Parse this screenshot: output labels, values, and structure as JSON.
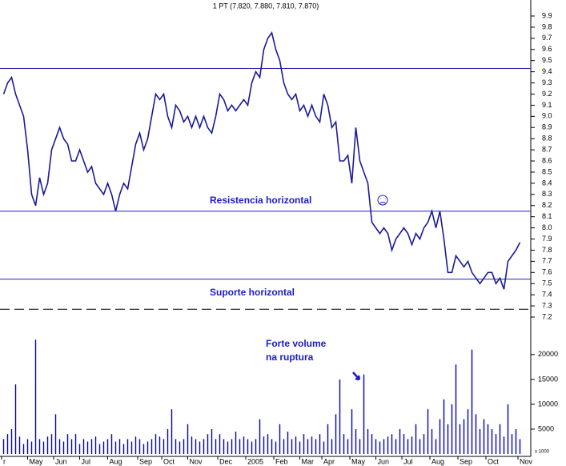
{
  "chart_data": {
    "type": "stock",
    "title": "1 PT (7.820, 7.880, 7.810, 7.870)",
    "price": {
      "color": "#1a1a9a",
      "values": [
        9.2,
        9.3,
        9.35,
        9.2,
        9.1,
        9.0,
        8.7,
        8.3,
        8.2,
        8.45,
        8.3,
        8.4,
        8.7,
        8.8,
        8.9,
        8.8,
        8.75,
        8.6,
        8.6,
        8.7,
        8.6,
        8.5,
        8.55,
        8.4,
        8.35,
        8.3,
        8.4,
        8.3,
        8.15,
        8.3,
        8.4,
        8.35,
        8.55,
        8.75,
        8.85,
        8.7,
        8.8,
        9.0,
        9.2,
        9.15,
        9.2,
        9.0,
        8.9,
        9.1,
        9.05,
        8.95,
        9.0,
        8.9,
        9.0,
        8.9,
        9.0,
        8.9,
        8.85,
        9.0,
        9.2,
        9.15,
        9.05,
        9.1,
        9.05,
        9.1,
        9.15,
        9.1,
        9.3,
        9.4,
        9.35,
        9.6,
        9.7,
        9.75,
        9.6,
        9.5,
        9.3,
        9.2,
        9.15,
        9.2,
        9.05,
        9.1,
        9.0,
        9.1,
        9.0,
        8.95,
        9.2,
        9.1,
        8.9,
        8.95,
        8.6,
        8.6,
        8.65,
        8.4,
        8.9,
        8.6,
        8.5,
        8.4,
        8.05,
        8.0,
        7.95,
        8.0,
        7.95,
        7.8,
        7.9,
        7.95,
        8.0,
        7.95,
        7.85,
        7.95,
        7.9,
        8.0,
        8.05,
        8.15,
        8.0,
        8.15,
        7.9,
        7.6,
        7.6,
        7.75,
        7.7,
        7.65,
        7.7,
        7.6,
        7.55,
        7.5,
        7.55,
        7.6,
        7.6,
        7.5,
        7.55,
        7.45,
        7.7,
        7.75,
        7.8,
        7.87
      ]
    },
    "volume": {
      "color": "#0000c8",
      "values": [
        3000,
        4000,
        5000,
        14000,
        3500,
        2000,
        3000,
        2500,
        23000,
        3000,
        2500,
        3500,
        4000,
        8000,
        3000,
        2500,
        4000,
        3000,
        4000,
        2000,
        3000,
        2500,
        3000,
        3500,
        2000,
        2500,
        3000,
        4000,
        2500,
        3000,
        2000,
        3000,
        2500,
        3500,
        3000,
        2000,
        2500,
        3000,
        4000,
        3500,
        3000,
        5000,
        9000,
        3000,
        2500,
        3000,
        6000,
        3500,
        3000,
        2500,
        3000,
        4000,
        5000,
        3000,
        4000,
        3000,
        2500,
        3000,
        4500,
        3000,
        3500,
        3000,
        2500,
        3000,
        7000,
        3500,
        4000,
        3000,
        2500,
        6000,
        3000,
        4500,
        3000,
        3500,
        2500,
        4000,
        3000,
        3500,
        3000,
        4000,
        2500,
        6000,
        3000,
        8000,
        15000,
        4000,
        3000,
        9000,
        5000,
        3000,
        16000,
        5000,
        4000,
        3000,
        2500,
        3000,
        3500,
        4000,
        3000,
        5000,
        4000,
        3000,
        3500,
        6000,
        3000,
        4000,
        9000,
        5000,
        3000,
        7000,
        11000,
        6000,
        10000,
        18000,
        6000,
        7000,
        9000,
        21000,
        8000,
        5000,
        7000,
        6000,
        5000,
        4000,
        6000,
        3500,
        10000,
        4000,
        5000,
        3000
      ]
    },
    "xlim": [
      0,
      132
    ],
    "xticks": [
      {
        "value": 0,
        "label": "r"
      },
      {
        "value": 6.5,
        "label": "May"
      },
      {
        "value": 13,
        "label": "Jun"
      },
      {
        "value": 19.5,
        "label": "Jul"
      },
      {
        "value": 26.5,
        "label": "Aug"
      },
      {
        "value": 34,
        "label": "Sep"
      },
      {
        "value": 40,
        "label": "Oct"
      },
      {
        "value": 46.5,
        "label": "Nov"
      },
      {
        "value": 54,
        "label": "Dec"
      },
      {
        "value": 61,
        "label": "2005"
      },
      {
        "value": 68,
        "label": "Feb"
      },
      {
        "value": 74.5,
        "label": "Mar"
      },
      {
        "value": 80,
        "label": "Apr"
      },
      {
        "value": 87,
        "label": "May"
      },
      {
        "value": 93.5,
        "label": "Jun"
      },
      {
        "value": 100,
        "label": "Jul"
      },
      {
        "value": 107,
        "label": "Aug"
      },
      {
        "value": 114,
        "label": "Sep"
      },
      {
        "value": 121,
        "label": "Oct"
      },
      {
        "value": 129,
        "label": "Nov"
      }
    ],
    "ylim": [
      7.2,
      9.9
    ],
    "yticks": [
      7.2,
      7.3,
      7.4,
      7.5,
      7.6,
      7.7,
      7.8,
      7.9,
      {
        "value": 8,
        "label": "8.0"
      },
      8.1,
      8.2,
      8.3,
      8.4,
      8.5,
      8.6,
      8.7,
      8.8,
      8.9,
      {
        "value": 9,
        "label": "9.0"
      },
      9.1,
      9.2,
      9.3,
      9.4,
      9.5,
      9.6,
      9.7,
      9.8,
      9.9
    ],
    "vlim": [
      0,
      24000
    ],
    "vticks": [
      5000,
      10000,
      15000,
      20000
    ],
    "volume_unit": "x 1000",
    "hlines": [
      9.43,
      8.15,
      7.54
    ],
    "dashed_line": 7.27,
    "annotations": [
      "Resistencia horizontal",
      "Suporte horizontal",
      "Forte volume",
      "na ruptura"
    ]
  }
}
